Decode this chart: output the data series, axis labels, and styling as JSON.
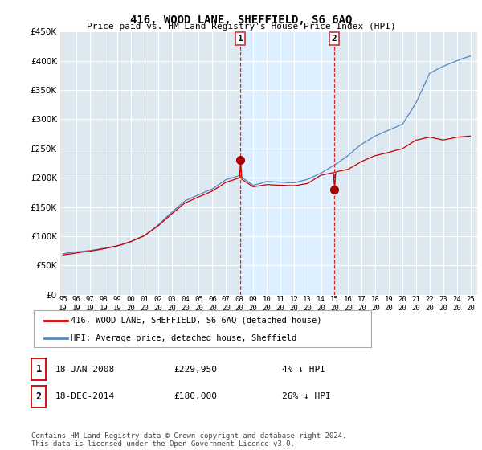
{
  "title": "416, WOOD LANE, SHEFFIELD, S6 6AQ",
  "subtitle": "Price paid vs. HM Land Registry's House Price Index (HPI)",
  "ylim": [
    0,
    450000
  ],
  "xlim_start": 1994.8,
  "xlim_end": 2025.5,
  "transaction1": {
    "date": "18-JAN-2008",
    "price": 229950,
    "label": "1",
    "year": 2008.05,
    "pct": "4% ↓ HPI"
  },
  "transaction2": {
    "date": "18-DEC-2014",
    "price": 180000,
    "label": "2",
    "year": 2014.97,
    "pct": "26% ↓ HPI"
  },
  "line_color_property": "#cc0000",
  "line_color_hpi": "#5588bb",
  "shade_color": "#ddeeff",
  "background_color": "#dde8f0",
  "grid_color": "#ffffff",
  "legend_label_property": "416, WOOD LANE, SHEFFIELD, S6 6AQ (detached house)",
  "legend_label_hpi": "HPI: Average price, detached house, Sheffield",
  "footer": "Contains HM Land Registry data © Crown copyright and database right 2024.\nThis data is licensed under the Open Government Licence v3.0.",
  "vline_color": "#cc0000",
  "marker_color": "#aa0000",
  "table_box_color": "#cc0000",
  "title_fontsize": 10,
  "subtitle_fontsize": 8
}
